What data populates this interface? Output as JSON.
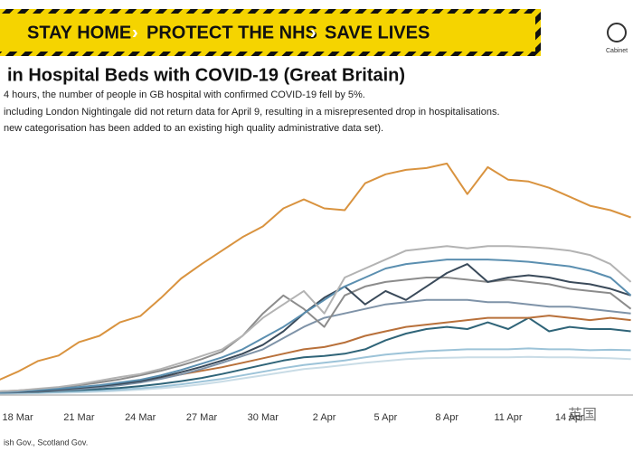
{
  "banner": {
    "items": [
      "STAY HOME",
      "PROTECT THE NHS",
      "SAVE LIVES"
    ]
  },
  "logo_text": "Cabinet",
  "chart_data": {
    "type": "line",
    "title": "in Hospital Beds with COVID-19 (Great Britain)",
    "notes": [
      "4 hours, the number of people in GB hospital with confirmed COVID-19 fell by 5%.",
      "including London Nightingale did not return data for April 9, resulting in a misrepresented drop in hospitalisations.",
      "new categorisation has been added to an existing high quality administrative data set)."
    ],
    "source": "ish Gov., Scotland Gov.",
    "watermark": "英国",
    "categories": [
      null,
      "18 Mar",
      null,
      null,
      "21 Mar",
      null,
      null,
      "24 Mar",
      null,
      null,
      "27 Mar",
      null,
      null,
      "30 Mar",
      null,
      null,
      "2 Apr",
      null,
      null,
      "5 Apr",
      null,
      null,
      "8 Apr",
      null,
      null,
      "11 Apr",
      null,
      null,
      "14 Apr",
      null,
      null,
      null
    ],
    "ylim": [
      0,
      5400
    ],
    "series": [
      {
        "color": "#c9dce6",
        "values": [
          10,
          15,
          20,
          30,
          40,
          55,
          75,
          100,
          130,
          170,
          220,
          280,
          350,
          420,
          490,
          560,
          600,
          650,
          700,
          740,
          780,
          800,
          810,
          820,
          820,
          820,
          830,
          820,
          820,
          810,
          800,
          780
        ]
      },
      {
        "color": "#9cc3d8",
        "values": [
          20,
          25,
          35,
          45,
          60,
          80,
          100,
          130,
          170,
          220,
          280,
          340,
          420,
          500,
          580,
          650,
          700,
          750,
          820,
          880,
          920,
          960,
          980,
          1000,
          1000,
          1000,
          1020,
          1000,
          1000,
          980,
          990,
          980
        ]
      },
      {
        "color": "#2f6478",
        "values": [
          30,
          40,
          50,
          70,
          90,
          110,
          140,
          180,
          230,
          290,
          360,
          450,
          550,
          650,
          750,
          820,
          850,
          900,
          1000,
          1200,
          1350,
          1450,
          1500,
          1450,
          1600,
          1450,
          1700,
          1400,
          1500,
          1450,
          1450,
          1400
        ]
      },
      {
        "color": "#b8703a",
        "values": [
          40,
          50,
          70,
          90,
          120,
          160,
          210,
          280,
          360,
          440,
          520,
          600,
          700,
          800,
          900,
          1000,
          1050,
          1150,
          1300,
          1400,
          1500,
          1550,
          1600,
          1650,
          1700,
          1700,
          1700,
          1750,
          1700,
          1650,
          1700,
          1650
        ]
      },
      {
        "color": "#7f93a8",
        "values": [
          30,
          40,
          60,
          80,
          110,
          150,
          200,
          260,
          340,
          440,
          560,
          700,
          850,
          1000,
          1250,
          1500,
          1700,
          1800,
          1900,
          2000,
          2050,
          2100,
          2100,
          2100,
          2050,
          2050,
          2000,
          1950,
          1950,
          1900,
          1850,
          1800
        ]
      },
      {
        "color": "#8c8c8c",
        "values": [
          60,
          80,
          110,
          150,
          200,
          260,
          330,
          420,
          520,
          640,
          780,
          950,
          1300,
          1800,
          2200,
          1900,
          1500,
          2200,
          2400,
          2500,
          2550,
          2600,
          2600,
          2550,
          2500,
          2550,
          2500,
          2450,
          2350,
          2300,
          2250,
          1900
        ]
      },
      {
        "color": "#3a4a5a",
        "values": [
          40,
          50,
          70,
          100,
          140,
          180,
          230,
          290,
          380,
          490,
          610,
          750,
          900,
          1100,
          1400,
          1800,
          2150,
          2400,
          2000,
          2300,
          2100,
          2400,
          2700,
          2900,
          2500,
          2600,
          2650,
          2600,
          2500,
          2450,
          2350,
          2200
        ]
      },
      {
        "color": "#5b8fb0",
        "values": [
          40,
          60,
          90,
          120,
          160,
          200,
          260,
          320,
          420,
          540,
          680,
          820,
          1000,
          1250,
          1500,
          1800,
          2100,
          2400,
          2600,
          2800,
          2900,
          2950,
          3000,
          3000,
          3000,
          2980,
          2950,
          2900,
          2850,
          2750,
          2600,
          2200
        ]
      },
      {
        "color": "#b3b3b3",
        "values": [
          60,
          80,
          120,
          160,
          220,
          300,
          380,
          450,
          560,
          700,
          850,
          1000,
          1300,
          1700,
          2000,
          2300,
          1800,
          2600,
          2800,
          3000,
          3200,
          3250,
          3300,
          3250,
          3300,
          3300,
          3280,
          3250,
          3200,
          3100,
          2900,
          2500
        ]
      },
      {
        "color": "#d9933f",
        "values": [
          300,
          500,
          740,
          860,
          1160,
          1300,
          1600,
          1740,
          2140,
          2580,
          2900,
          3200,
          3500,
          3740,
          4140,
          4340,
          4140,
          4100,
          4700,
          4900,
          5000,
          5040,
          5140,
          4460,
          5060,
          4780,
          4740,
          4600,
          4400,
          4200,
          4100,
          3940
        ]
      }
    ]
  }
}
